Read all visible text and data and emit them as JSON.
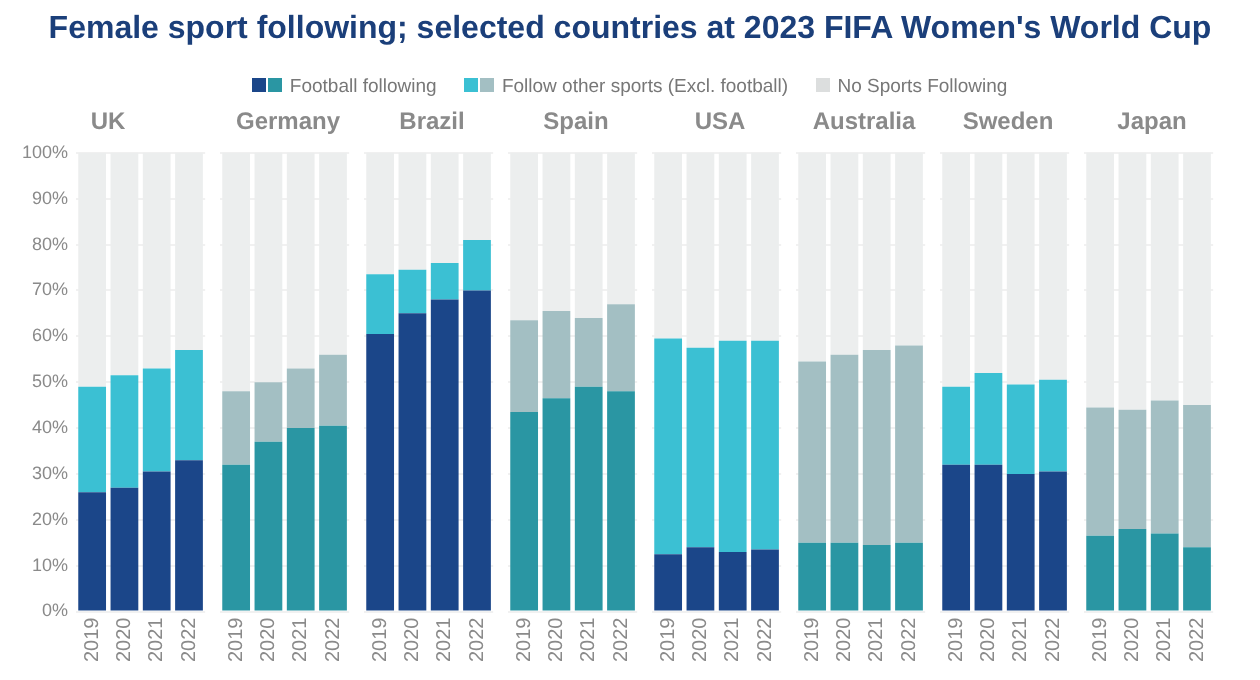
{
  "chart_data": [
    {
      "type": "other",
      "title": "Female sport following; selected countries at 2023 FIFA Women's World Cup"
    },
    {
      "type": "bar",
      "title": "UK",
      "categories": [
        "2019",
        "2020",
        "2021",
        "2022"
      ],
      "stacked": true,
      "ylim": [
        0,
        100
      ],
      "yticks": [
        {
          "value": 0,
          "label": "0%"
        },
        {
          "value": 10,
          "label": "10%"
        },
        {
          "value": 20,
          "label": "20%"
        },
        {
          "value": 30,
          "label": "30%"
        },
        {
          "value": 40,
          "label": "40%"
        },
        {
          "value": 50,
          "label": "50%"
        },
        {
          "value": 60,
          "label": "60%"
        },
        {
          "value": 70,
          "label": "70%"
        },
        {
          "value": 80,
          "label": "80%"
        },
        {
          "value": 90,
          "label": "90%"
        },
        {
          "value": 100,
          "label": "100%"
        }
      ],
      "grid": "y",
      "legend": "top",
      "series": [
        {
          "name": "Football following",
          "color": "#1b4689",
          "values": [
            26,
            27,
            30.5,
            33
          ]
        },
        {
          "name": "Follow other sports (Excl. football)",
          "color": "#3bc0d3",
          "values": [
            23,
            24.5,
            22.5,
            24
          ]
        },
        {
          "name": "No Sports Following",
          "color": "#eceeee",
          "values": [
            51,
            48.5,
            47,
            43
          ]
        }
      ]
    },
    {
      "type": "bar",
      "title": "Germany",
      "categories": [
        "2019",
        "2020",
        "2021",
        "2022"
      ],
      "stacked": true,
      "ylim": [
        0,
        100
      ],
      "yticks": [
        0,
        10,
        20,
        30,
        40,
        50,
        60,
        70,
        80,
        90,
        100
      ],
      "grid": "y",
      "tick_labels": "x",
      "series": [
        {
          "color": "#2a96a3",
          "values": [
            32,
            37,
            40,
            40.5
          ]
        },
        {
          "color": "#a3bfc3",
          "values": [
            16,
            13,
            13,
            15.5
          ]
        },
        {
          "color": "#eceeee",
          "values": [
            52,
            50,
            47,
            44
          ]
        }
      ]
    },
    {
      "type": "bar",
      "title": "Brazil",
      "categories": [
        "2019",
        "2020",
        "2021",
        "2022"
      ],
      "stacked": true,
      "ylim": [
        0,
        100
      ],
      "yticks": [
        0,
        10,
        20,
        30,
        40,
        50,
        60,
        70,
        80,
        90,
        100
      ],
      "grid": "y",
      "tick_labels": "x",
      "series": [
        {
          "color": "#1b4689",
          "values": [
            60.5,
            65,
            68,
            70
          ]
        },
        {
          "color": "#3bc0d3",
          "values": [
            13,
            9.5,
            8,
            11
          ]
        },
        {
          "color": "#eceeee",
          "values": [
            26.5,
            25.5,
            24,
            19
          ]
        }
      ]
    },
    {
      "type": "bar",
      "title": "Spain",
      "categories": [
        "2019",
        "2020",
        "2021",
        "2022"
      ],
      "stacked": true,
      "ylim": [
        0,
        100
      ],
      "yticks": [
        0,
        10,
        20,
        30,
        40,
        50,
        60,
        70,
        80,
        90,
        100
      ],
      "grid": "y",
      "tick_labels": "x",
      "series": [
        {
          "color": "#2a96a3",
          "values": [
            43.5,
            46.5,
            49,
            48
          ]
        },
        {
          "color": "#a3bfc3",
          "values": [
            20,
            19,
            15,
            19
          ]
        },
        {
          "color": "#eceeee",
          "values": [
            36.5,
            34.5,
            36,
            33
          ]
        }
      ]
    },
    {
      "type": "bar",
      "title": "USA",
      "categories": [
        "2019",
        "2020",
        "2021",
        "2022"
      ],
      "stacked": true,
      "ylim": [
        0,
        100
      ],
      "yticks": [
        0,
        10,
        20,
        30,
        40,
        50,
        60,
        70,
        80,
        90,
        100
      ],
      "grid": "y",
      "tick_labels": "x",
      "series": [
        {
          "color": "#1b4689",
          "values": [
            12.5,
            14,
            13,
            13.5
          ]
        },
        {
          "color": "#3bc0d3",
          "values": [
            47,
            43.5,
            46,
            45.5
          ]
        },
        {
          "color": "#eceeee",
          "values": [
            40.5,
            42.5,
            41,
            41
          ]
        }
      ]
    },
    {
      "type": "bar",
      "title": "Australia",
      "categories": [
        "2019",
        "2020",
        "2021",
        "2022"
      ],
      "stacked": true,
      "ylim": [
        0,
        100
      ],
      "yticks": [
        0,
        10,
        20,
        30,
        40,
        50,
        60,
        70,
        80,
        90,
        100
      ],
      "grid": "y",
      "tick_labels": "x",
      "series": [
        {
          "color": "#2a96a3",
          "values": [
            15,
            15,
            14.5,
            15
          ]
        },
        {
          "color": "#a3bfc3",
          "values": [
            39.5,
            41,
            42.5,
            43
          ]
        },
        {
          "color": "#eceeee",
          "values": [
            45.5,
            44,
            43,
            42
          ]
        }
      ]
    },
    {
      "type": "bar",
      "title": "Sweden",
      "categories": [
        "2019",
        "2020",
        "2021",
        "2022"
      ],
      "stacked": true,
      "ylim": [
        0,
        100
      ],
      "yticks": [
        0,
        10,
        20,
        30,
        40,
        50,
        60,
        70,
        80,
        90,
        100
      ],
      "grid": "y",
      "tick_labels": "x",
      "series": [
        {
          "color": "#1b4689",
          "values": [
            32,
            32,
            30,
            30.5
          ]
        },
        {
          "color": "#3bc0d3",
          "values": [
            17,
            20,
            19.5,
            20
          ]
        },
        {
          "color": "#eceeee",
          "values": [
            51,
            48,
            50.5,
            49.5
          ]
        }
      ]
    },
    {
      "type": "bar",
      "title": "Japan",
      "categories": [
        "2019",
        "2020",
        "2021",
        "2022"
      ],
      "stacked": true,
      "ylim": [
        0,
        100
      ],
      "yticks": [
        0,
        10,
        20,
        30,
        40,
        50,
        60,
        70,
        80,
        90,
        100
      ],
      "grid": "y",
      "tick_labels": "x",
      "series": [
        {
          "color": "#2a96a3",
          "values": [
            16.5,
            18,
            17,
            14
          ]
        },
        {
          "color": "#a3bfc3",
          "values": [
            28,
            26,
            29,
            31
          ]
        },
        {
          "color": "#eceeee",
          "values": [
            55.5,
            56,
            54,
            55
          ]
        }
      ]
    }
  ]
}
